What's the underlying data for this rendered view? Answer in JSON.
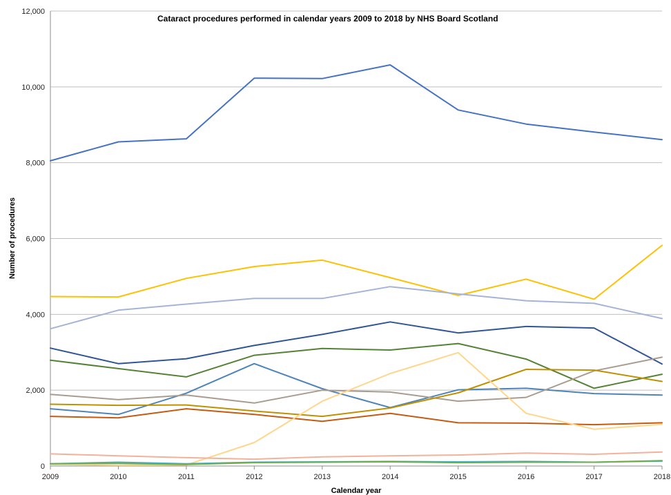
{
  "chart_data": {
    "type": "line",
    "title": "Cataract procedures performed in calendar years 2009 to 2018 by NHS Board Scotland",
    "xlabel": "Calendar year",
    "ylabel": "Number of procedures",
    "x": [
      "2009",
      "2010",
      "2011",
      "2012",
      "2013",
      "2014",
      "2015",
      "2016",
      "2017",
      "2018"
    ],
    "ylim": [
      0,
      12000
    ],
    "yticks": [
      0,
      2000,
      4000,
      6000,
      8000,
      10000,
      12000
    ],
    "ytick_labels": [
      "0",
      "2,000",
      "4,000",
      "6,000",
      "8,000",
      "10,000",
      "12,000"
    ],
    "grid": true,
    "legend": "none",
    "series": [
      {
        "color": "#4472C4",
        "values": [
          8050,
          8550,
          8630,
          10230,
          10220,
          10580,
          9390,
          9020,
          8810,
          8610
        ]
      },
      {
        "color": "#FFC000",
        "values": [
          4470,
          4460,
          4950,
          5260,
          5430,
          4970,
          4500,
          4930,
          4400,
          5820
        ]
      },
      {
        "color": "#A5B4D6",
        "values": [
          3620,
          4110,
          4270,
          4420,
          4420,
          4730,
          4540,
          4360,
          4290,
          3890
        ]
      },
      {
        "color": "#2F5597",
        "values": [
          3110,
          2700,
          2830,
          3180,
          3470,
          3800,
          3510,
          3680,
          3640,
          2690
        ]
      },
      {
        "color": "#548235",
        "values": [
          2790,
          2570,
          2350,
          2920,
          3100,
          3060,
          3230,
          2820,
          2050,
          2420
        ]
      },
      {
        "color": "#4E84B8",
        "values": [
          1510,
          1360,
          1920,
          2700,
          2040,
          1540,
          2010,
          2050,
          1910,
          1870
        ]
      },
      {
        "color": "#A99C8E",
        "values": [
          1890,
          1750,
          1870,
          1660,
          2000,
          1950,
          1710,
          1810,
          2510,
          2870
        ]
      },
      {
        "color": "#BF9000",
        "values": [
          1630,
          1600,
          1610,
          1450,
          1310,
          1530,
          1930,
          2550,
          2530,
          2230
        ]
      },
      {
        "color": "#C55A11",
        "values": [
          1310,
          1270,
          1510,
          1360,
          1180,
          1390,
          1140,
          1130,
          1090,
          1140
        ]
      },
      {
        "color": "#FFD68A",
        "values": [
          40,
          20,
          30,
          620,
          1710,
          2440,
          2990,
          1390,
          970,
          1100
        ]
      },
      {
        "color": "#F4B19A",
        "values": [
          320,
          270,
          220,
          180,
          240,
          270,
          290,
          340,
          310,
          370
        ]
      },
      {
        "color": "#4BACC6",
        "values": [
          60,
          100,
          60,
          100,
          110,
          120,
          110,
          120,
          100,
          130
        ]
      },
      {
        "color": "#70AD47",
        "values": [
          60,
          70,
          40,
          90,
          100,
          110,
          90,
          100,
          100,
          140
        ]
      }
    ]
  }
}
